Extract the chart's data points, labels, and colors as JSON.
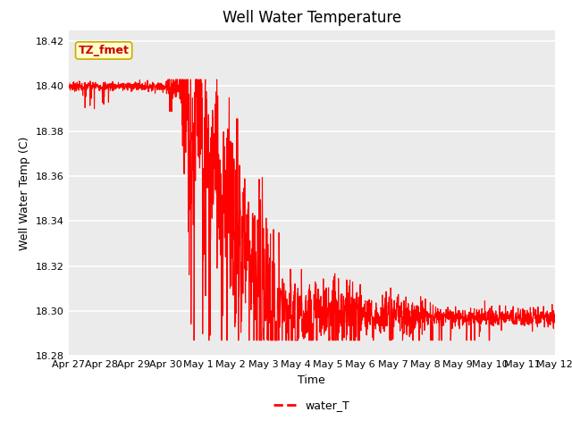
{
  "title": "Well Water Temperature",
  "xlabel": "Time",
  "ylabel": "Well Water Temp (C)",
  "ylim": [
    18.28,
    18.425
  ],
  "yticks": [
    18.28,
    18.3,
    18.32,
    18.34,
    18.36,
    18.38,
    18.4,
    18.42
  ],
  "line_color": "#FF0000",
  "line_width": 0.8,
  "legend_label": "water_T",
  "annotation_text": "TZ_fmet",
  "annotation_color": "#CC0000",
  "annotation_bg": "#FFFFCC",
  "annotation_border": "#CCAA00",
  "bg_color": "#EBEBEB",
  "xtick_labels": [
    "Apr 27",
    "Apr 28",
    "Apr 29",
    "Apr 30",
    "May 1",
    "May 2",
    "May 3",
    "May 4",
    "May 5",
    "May 6",
    "May 7",
    "May 8",
    "May 9",
    "May 10",
    "May 11",
    "May 12"
  ],
  "title_fontsize": 12,
  "axis_label_fontsize": 9,
  "tick_fontsize": 8
}
